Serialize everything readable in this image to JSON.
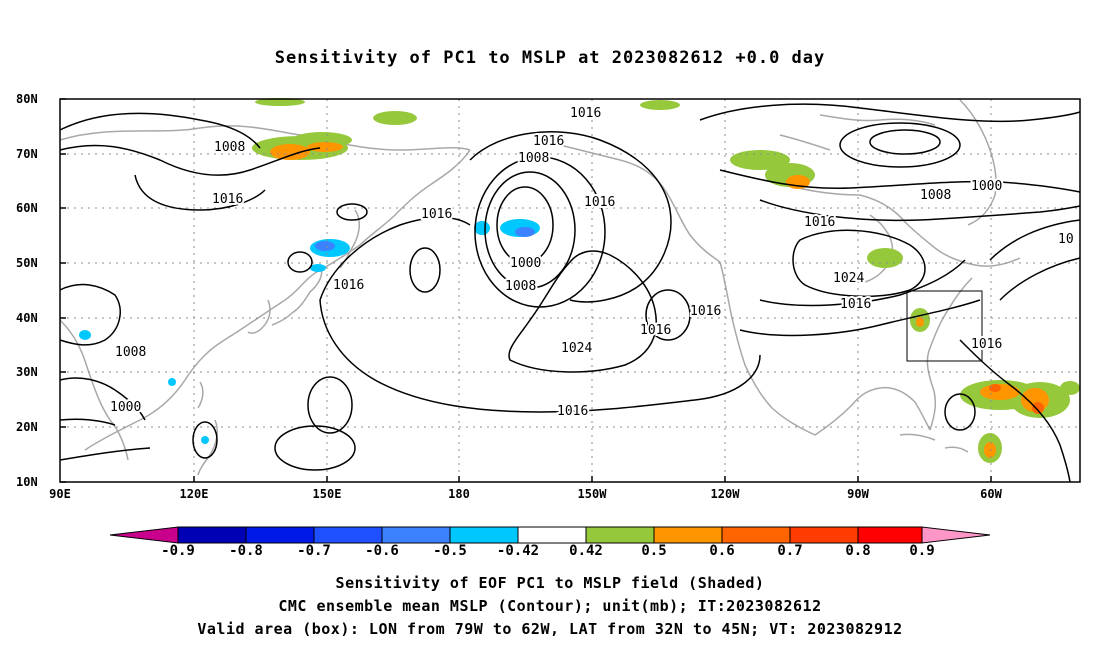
{
  "title": "Sensitivity of PC1 to MSLP at 2023082612 +0.0 day",
  "lat_labels": [
    "80N",
    "70N",
    "60N",
    "50N",
    "40N",
    "30N",
    "20N",
    "10N"
  ],
  "lon_labels": [
    "90E",
    "120E",
    "150E",
    "180",
    "150W",
    "120W",
    "90W",
    "60W"
  ],
  "isobar_labels": [
    {
      "text": "1016"
    },
    {
      "text": "1016"
    },
    {
      "text": "1008"
    },
    {
      "text": "1008"
    },
    {
      "text": "1016"
    },
    {
      "text": "1016"
    },
    {
      "text": "1016"
    },
    {
      "text": "1000"
    },
    {
      "text": "1008"
    },
    {
      "text": "1016"
    },
    {
      "text": "1024"
    },
    {
      "text": "1016"
    },
    {
      "text": "1016"
    },
    {
      "text": "1008"
    },
    {
      "text": "1000"
    },
    {
      "text": "1016"
    },
    {
      "text": "10"
    },
    {
      "text": "1024"
    },
    {
      "text": "1016"
    },
    {
      "text": "1016"
    },
    {
      "text": "1008"
    },
    {
      "text": "1000"
    },
    {
      "text": "1016"
    }
  ],
  "colorbar": {
    "colors": [
      "#c8008c",
      "#0000b4",
      "#0019e6",
      "#1e50ff",
      "#3c82ff",
      "#00c8ff",
      "#ffffff",
      "#96c83c",
      "#ff9600",
      "#ff6400",
      "#ff3c00",
      "#ff0000",
      "#ff96c8"
    ],
    "labels": [
      "-0.9",
      "-0.8",
      "-0.7",
      "-0.6",
      "-0.5",
      "-0.42",
      "0.42",
      "0.5",
      "0.6",
      "0.7",
      "0.8",
      "0.9"
    ]
  },
  "captions": {
    "line1": "Sensitivity of EOF PC1 to MSLP field (Shaded)",
    "line2": "CMC ensemble mean MSLP (Contour); unit(mb); IT:2023082612",
    "line3": "Valid area (box): LON from 79W to 62W, LAT from 32N to 45N; VT: 2023082912"
  }
}
